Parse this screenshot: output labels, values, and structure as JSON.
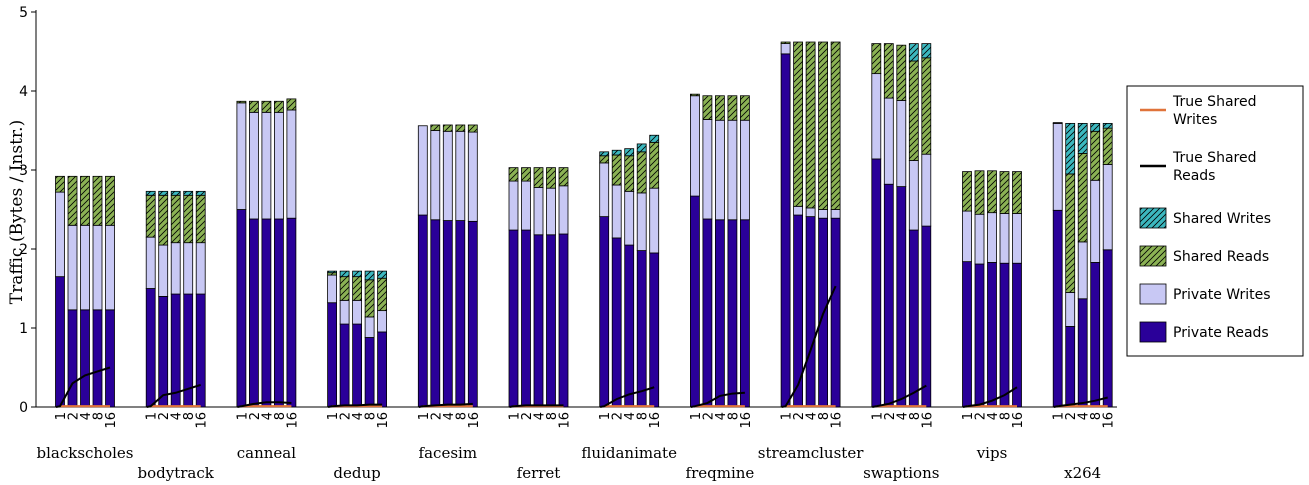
{
  "chart_data": {
    "type": "bar",
    "stacked": true,
    "ylabel": "Traffic (Bytes / Instr.)",
    "ylim": [
      0,
      5
    ],
    "yticks": [
      0,
      1,
      2,
      3,
      4,
      5
    ],
    "grid": false,
    "legend_position": "right",
    "thread_counts": [
      "1",
      "2",
      "4",
      "8",
      "16"
    ],
    "colors": {
      "private_reads": "#2a0099",
      "private_writes": "#c8c8f4",
      "shared_reads": "#8bb254",
      "shared_writes": "#3cb8bf",
      "true_shared_writes": "#e0733a",
      "true_shared_reads": "#000000"
    },
    "legend": [
      {
        "key": "true_shared_writes",
        "label_lines": [
          "True Shared",
          "Writes"
        ],
        "kind": "line"
      },
      {
        "key": "true_shared_reads",
        "label_lines": [
          "True Shared",
          "Reads"
        ],
        "kind": "line"
      },
      {
        "key": "shared_writes",
        "label_lines": [
          "Shared Writes"
        ],
        "kind": "hatch"
      },
      {
        "key": "shared_reads",
        "label_lines": [
          "Shared Reads"
        ],
        "kind": "hatch"
      },
      {
        "key": "private_writes",
        "label_lines": [
          "Private Writes"
        ],
        "kind": "fill"
      },
      {
        "key": "private_reads",
        "label_lines": [
          "Private Reads"
        ],
        "kind": "fill"
      }
    ],
    "benchmarks": [
      {
        "name": "blackscholes",
        "private_reads": [
          1.65,
          1.23,
          1.23,
          1.23,
          1.23
        ],
        "private_writes": [
          1.07,
          1.07,
          1.07,
          1.07,
          1.07
        ],
        "shared_reads": [
          0.2,
          0.62,
          0.62,
          0.62,
          0.62
        ],
        "shared_writes": [
          0,
          0,
          0,
          0,
          0
        ],
        "true_shared_reads": [
          0.01,
          0.3,
          0.4,
          0.45,
          0.5
        ],
        "true_shared_writes": [
          0.01,
          0.01,
          0.01,
          0.01,
          0.01
        ]
      },
      {
        "name": "bodytrack",
        "private_reads": [
          1.5,
          1.4,
          1.43,
          1.43,
          1.43
        ],
        "private_writes": [
          0.65,
          0.65,
          0.65,
          0.65,
          0.65
        ],
        "shared_reads": [
          0.53,
          0.63,
          0.6,
          0.6,
          0.6
        ],
        "shared_writes": [
          0.05,
          0.05,
          0.05,
          0.05,
          0.05
        ],
        "true_shared_reads": [
          0.01,
          0.15,
          0.18,
          0.23,
          0.28
        ],
        "true_shared_writes": [
          0.01,
          0.01,
          0.01,
          0.01,
          0.01
        ]
      },
      {
        "name": "canneal",
        "private_reads": [
          2.5,
          2.38,
          2.38,
          2.38,
          2.39
        ],
        "private_writes": [
          1.35,
          1.35,
          1.35,
          1.35,
          1.37
        ],
        "shared_reads": [
          0.02,
          0.14,
          0.14,
          0.14,
          0.14
        ],
        "shared_writes": [
          0,
          0,
          0,
          0,
          0
        ],
        "true_shared_reads": [
          0.01,
          0.04,
          0.06,
          0.06,
          0.05
        ],
        "true_shared_writes": [
          0.01,
          0.01,
          0.01,
          0.01,
          0.01
        ]
      },
      {
        "name": "dedup",
        "private_reads": [
          1.32,
          1.05,
          1.05,
          0.88,
          0.95
        ],
        "private_writes": [
          0.35,
          0.3,
          0.3,
          0.26,
          0.27
        ],
        "shared_reads": [
          0.03,
          0.3,
          0.3,
          0.47,
          0.41
        ],
        "shared_writes": [
          0.02,
          0.07,
          0.07,
          0.11,
          0.09
        ],
        "true_shared_reads": [
          0.01,
          0.02,
          0.02,
          0.03,
          0.03
        ],
        "true_shared_writes": [
          0.01,
          0.01,
          0.01,
          0.01,
          0.01
        ]
      },
      {
        "name": "facesim",
        "private_reads": [
          2.43,
          2.37,
          2.36,
          2.36,
          2.35
        ],
        "private_writes": [
          1.13,
          1.13,
          1.13,
          1.13,
          1.13
        ],
        "shared_reads": [
          0,
          0.07,
          0.08,
          0.08,
          0.09
        ],
        "shared_writes": [
          0,
          0,
          0,
          0,
          0
        ],
        "true_shared_reads": [
          0.01,
          0.02,
          0.03,
          0.03,
          0.04
        ],
        "true_shared_writes": [
          0.01,
          0.01,
          0.01,
          0.01,
          0.01
        ]
      },
      {
        "name": "ferret",
        "private_reads": [
          2.24,
          2.24,
          2.18,
          2.18,
          2.19
        ],
        "private_writes": [
          0.62,
          0.62,
          0.6,
          0.59,
          0.61
        ],
        "shared_reads": [
          0.17,
          0.17,
          0.25,
          0.26,
          0.23
        ],
        "shared_writes": [
          0,
          0,
          0,
          0,
          0
        ],
        "true_shared_reads": [
          0.01,
          0.02,
          0.02,
          0.02,
          0.02
        ],
        "true_shared_writes": [
          0.01,
          0.01,
          0.01,
          0.01,
          0.01
        ]
      },
      {
        "name": "fluidanimate",
        "private_reads": [
          2.41,
          2.14,
          2.05,
          1.98,
          1.95
        ],
        "private_writes": [
          0.68,
          0.67,
          0.68,
          0.73,
          0.82
        ],
        "shared_reads": [
          0.09,
          0.38,
          0.45,
          0.52,
          0.58
        ],
        "shared_writes": [
          0.05,
          0.06,
          0.09,
          0.1,
          0.09
        ],
        "true_shared_reads": [
          0.01,
          0.1,
          0.16,
          0.2,
          0.25
        ],
        "true_shared_writes": [
          0.01,
          0.01,
          0.01,
          0.01,
          0.01
        ]
      },
      {
        "name": "freqmine",
        "private_reads": [
          2.67,
          2.38,
          2.37,
          2.37,
          2.37
        ],
        "private_writes": [
          1.27,
          1.26,
          1.26,
          1.26,
          1.26
        ],
        "shared_reads": [
          0.02,
          0.3,
          0.31,
          0.31,
          0.31
        ],
        "shared_writes": [
          0,
          0,
          0,
          0,
          0
        ],
        "true_shared_reads": [
          0.01,
          0.05,
          0.14,
          0.17,
          0.18
        ],
        "true_shared_writes": [
          0.01,
          0.01,
          0.01,
          0.01,
          0.01
        ]
      },
      {
        "name": "streamcluster",
        "private_reads": [
          4.47,
          2.43,
          2.41,
          2.39,
          2.39
        ],
        "private_writes": [
          0.13,
          0.11,
          0.11,
          0.11,
          0.11
        ],
        "shared_reads": [
          0.02,
          2.08,
          2.1,
          2.12,
          2.12
        ],
        "shared_writes": [
          0,
          0,
          0,
          0,
          0
        ],
        "true_shared_reads": [
          0.01,
          0.28,
          0.72,
          1.18,
          1.53
        ],
        "true_shared_writes": [
          0.01,
          0.01,
          0.01,
          0.01,
          0.01
        ]
      },
      {
        "name": "swaptions",
        "private_reads": [
          3.14,
          2.82,
          2.79,
          2.24,
          2.29
        ],
        "private_writes": [
          1.08,
          1.09,
          1.09,
          0.88,
          0.91
        ],
        "shared_reads": [
          0.38,
          0.69,
          0.7,
          1.26,
          1.22
        ],
        "shared_writes": [
          0,
          0,
          0,
          0.22,
          0.18
        ],
        "true_shared_reads": [
          0.01,
          0.04,
          0.1,
          0.18,
          0.27
        ],
        "true_shared_writes": [
          0.01,
          0.01,
          0.01,
          0.01,
          0.01
        ]
      },
      {
        "name": "vips",
        "private_reads": [
          1.84,
          1.81,
          1.83,
          1.82,
          1.82
        ],
        "private_writes": [
          0.64,
          0.63,
          0.63,
          0.63,
          0.63
        ],
        "shared_reads": [
          0.5,
          0.55,
          0.53,
          0.53,
          0.53
        ],
        "shared_writes": [
          0,
          0,
          0,
          0,
          0
        ],
        "true_shared_reads": [
          0.01,
          0.03,
          0.08,
          0.15,
          0.25
        ],
        "true_shared_writes": [
          0.01,
          0.01,
          0.01,
          0.01,
          0.01
        ]
      },
      {
        "name": "x264",
        "private_reads": [
          2.49,
          1.02,
          1.37,
          1.83,
          1.99
        ],
        "private_writes": [
          1.1,
          0.43,
          0.72,
          1.04,
          1.08
        ],
        "shared_reads": [
          0.01,
          1.5,
          1.12,
          0.62,
          0.46
        ],
        "shared_writes": [
          0,
          0.64,
          0.38,
          0.1,
          0.06
        ],
        "true_shared_reads": [
          0.01,
          0.03,
          0.05,
          0.08,
          0.12
        ],
        "true_shared_writes": [
          0.01,
          0.01,
          0.01,
          0.01,
          0.01
        ]
      }
    ]
  }
}
